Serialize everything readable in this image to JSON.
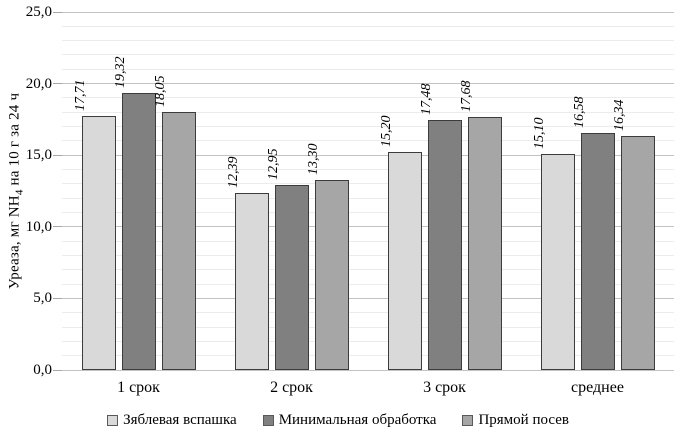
{
  "chart_data": {
    "type": "bar",
    "title": "",
    "ylabel": {
      "prefix": "Уреаза, мг NH",
      "subscript": "4",
      "suffix": " на 10 г за 24 ч"
    },
    "categories": [
      "1 срок",
      "2 срок",
      "3 срок",
      "среднее"
    ],
    "series": [
      {
        "name": "Зяблевая вспашка",
        "color": "#d9d9d9",
        "values": [
          17.71,
          12.39,
          15.2,
          15.1
        ]
      },
      {
        "name": "Минимальная обработка",
        "color": "#808080",
        "values": [
          19.32,
          12.95,
          17.48,
          16.58
        ]
      },
      {
        "name": "Прямой посев",
        "color": "#a6a6a6",
        "values": [
          18.05,
          13.3,
          17.68,
          16.34
        ]
      }
    ],
    "value_labels": [
      [
        "17,71",
        "12,39",
        "15,20",
        "15,10"
      ],
      [
        "19,32",
        "12,95",
        "17,48",
        "16,58"
      ],
      [
        "18,05",
        "13,30",
        "17,68",
        "16,34"
      ]
    ],
    "ylim": [
      0,
      25
    ],
    "ytick_step": 5,
    "yminor_step": 1,
    "ytick_labels": [
      "0,0",
      "5,0",
      "10,0",
      "15,0",
      "20,0",
      "25,0"
    ],
    "decimal_separator": ",",
    "grid": true,
    "legend_position": "bottom",
    "colors": {
      "bar_border": "#3c3c3c",
      "grid_minor": "#ececec",
      "grid_major": "#c3c3c3",
      "tick": "#a6a6a6",
      "text": "#000000",
      "background": "#ffffff"
    }
  }
}
